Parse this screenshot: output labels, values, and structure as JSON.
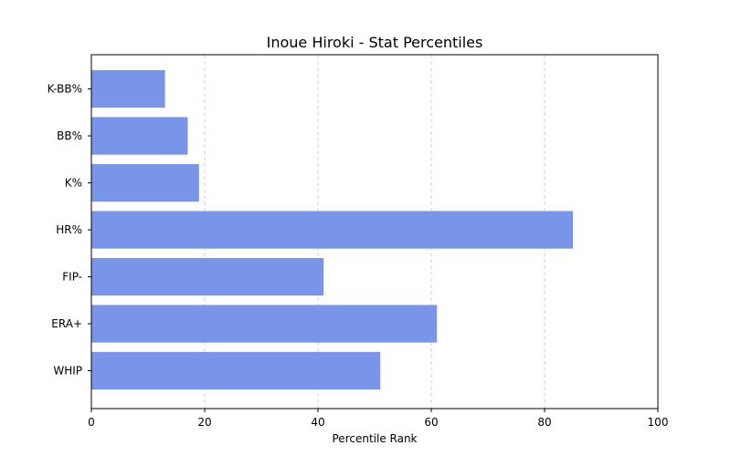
{
  "chart_data": {
    "type": "bar",
    "orientation": "horizontal",
    "title": "Inoue Hiroki - Stat Percentiles",
    "xlabel": "Percentile Rank",
    "ylabel": "",
    "categories": [
      "WHIP",
      "ERA+",
      "FIP-",
      "HR%",
      "K%",
      "BB%",
      "K-BB%"
    ],
    "values": [
      51,
      61,
      41,
      85,
      19,
      17,
      13
    ],
    "xlim": [
      0,
      100
    ],
    "xticks": [
      0,
      20,
      40,
      60,
      80,
      100
    ],
    "grid": "x-axis dashed",
    "bar_color": "#7995e9",
    "grid_color": "#c8c8c8"
  }
}
